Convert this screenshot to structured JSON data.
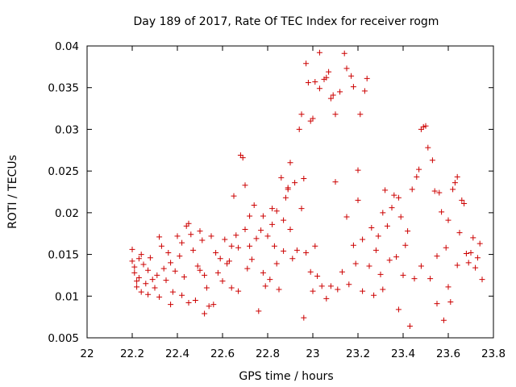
{
  "chart_data": {
    "type": "scatter",
    "title": "Day 189 of 2017, Rate Of TEC Index for receiver rogm",
    "xlabel": "GPS time / hours",
    "ylabel": "ROTI / TECUs",
    "xlim": [
      22,
      23.8
    ],
    "ylim": [
      0.005,
      0.04
    ],
    "xticks": [
      22,
      22.2,
      22.4,
      22.6,
      22.8,
      23,
      23.2,
      23.4,
      23.6,
      23.8
    ],
    "xtick_labels": [
      "22",
      "22.2",
      "22.4",
      "22.6",
      "22.8",
      "23",
      "23.2",
      "23.4",
      "23.6",
      "23.8"
    ],
    "yticks": [
      0.005,
      0.01,
      0.015,
      0.02,
      0.025,
      0.03,
      0.035,
      0.04
    ],
    "ytick_labels": [
      "0.005",
      "0.01",
      "0.015",
      "0.02",
      "0.025",
      "0.03",
      "0.035",
      "0.04"
    ],
    "grid": false,
    "marker": "+",
    "color": "#cc0000",
    "series": [
      {
        "name": "ROTI",
        "points": [
          [
            22.2,
            0.0156
          ],
          [
            22.2,
            0.0142
          ],
          [
            22.21,
            0.0135
          ],
          [
            22.21,
            0.0128
          ],
          [
            22.22,
            0.0118
          ],
          [
            22.22,
            0.0111
          ],
          [
            22.23,
            0.0145
          ],
          [
            22.23,
            0.0122
          ],
          [
            22.24,
            0.0105
          ],
          [
            22.24,
            0.015
          ],
          [
            22.25,
            0.0138
          ],
          [
            22.26,
            0.0115
          ],
          [
            22.27,
            0.0102
          ],
          [
            22.27,
            0.0131
          ],
          [
            22.28,
            0.0146
          ],
          [
            22.29,
            0.012
          ],
          [
            22.3,
            0.011
          ],
          [
            22.31,
            0.0125
          ],
          [
            22.32,
            0.0171
          ],
          [
            22.32,
            0.0099
          ],
          [
            22.33,
            0.016
          ],
          [
            22.34,
            0.0133
          ],
          [
            22.35,
            0.0119
          ],
          [
            22.36,
            0.0152
          ],
          [
            22.37,
            0.014
          ],
          [
            22.37,
            0.009
          ],
          [
            22.38,
            0.0105
          ],
          [
            22.39,
            0.013
          ],
          [
            22.4,
            0.0172
          ],
          [
            22.41,
            0.0148
          ],
          [
            22.42,
            0.0164
          ],
          [
            22.42,
            0.0101
          ],
          [
            22.43,
            0.0123
          ],
          [
            22.44,
            0.0184
          ],
          [
            22.45,
            0.0187
          ],
          [
            22.45,
            0.0092
          ],
          [
            22.46,
            0.0174
          ],
          [
            22.47,
            0.0155
          ],
          [
            22.48,
            0.0095
          ],
          [
            22.49,
            0.0136
          ],
          [
            22.5,
            0.0131
          ],
          [
            22.5,
            0.0178
          ],
          [
            22.51,
            0.0167
          ],
          [
            22.52,
            0.0125
          ],
          [
            22.52,
            0.0079
          ],
          [
            22.53,
            0.011
          ],
          [
            22.54,
            0.0088
          ],
          [
            22.55,
            0.0172
          ],
          [
            22.56,
            0.009
          ],
          [
            22.57,
            0.0152
          ],
          [
            22.58,
            0.0128
          ],
          [
            22.59,
            0.0145
          ],
          [
            22.6,
            0.0118
          ],
          [
            22.61,
            0.0168
          ],
          [
            22.62,
            0.0139
          ],
          [
            22.63,
            0.0142
          ],
          [
            22.64,
            0.016
          ],
          [
            22.64,
            0.011
          ],
          [
            22.65,
            0.022
          ],
          [
            22.66,
            0.0173
          ],
          [
            22.67,
            0.0158
          ],
          [
            22.67,
            0.0106
          ],
          [
            22.68,
            0.0269
          ],
          [
            22.69,
            0.0266
          ],
          [
            22.7,
            0.0233
          ],
          [
            22.7,
            0.018
          ],
          [
            22.71,
            0.0133
          ],
          [
            22.72,
            0.0196
          ],
          [
            22.72,
            0.016
          ],
          [
            22.73,
            0.0144
          ],
          [
            22.74,
            0.0209
          ],
          [
            22.75,
            0.0169
          ],
          [
            22.76,
            0.0082
          ],
          [
            22.77,
            0.0179
          ],
          [
            22.78,
            0.0196
          ],
          [
            22.78,
            0.0128
          ],
          [
            22.79,
            0.0112
          ],
          [
            22.8,
            0.0172
          ],
          [
            22.81,
            0.012
          ],
          [
            22.82,
            0.0186
          ],
          [
            22.82,
            0.0205
          ],
          [
            22.83,
            0.016
          ],
          [
            22.84,
            0.0202
          ],
          [
            22.84,
            0.0139
          ],
          [
            22.85,
            0.0108
          ],
          [
            22.86,
            0.0242
          ],
          [
            22.87,
            0.0191
          ],
          [
            22.87,
            0.0154
          ],
          [
            22.88,
            0.0218
          ],
          [
            22.89,
            0.0228
          ],
          [
            22.89,
            0.023
          ],
          [
            22.9,
            0.026
          ],
          [
            22.9,
            0.018
          ],
          [
            22.91,
            0.0145
          ],
          [
            22.92,
            0.0236
          ],
          [
            22.93,
            0.0155
          ],
          [
            22.94,
            0.03
          ],
          [
            22.95,
            0.0318
          ],
          [
            22.95,
            0.0205
          ],
          [
            22.96,
            0.0241
          ],
          [
            22.96,
            0.0074
          ],
          [
            22.97,
            0.0379
          ],
          [
            22.97,
            0.0152
          ],
          [
            22.98,
            0.0356
          ],
          [
            22.99,
            0.031
          ],
          [
            22.99,
            0.0129
          ],
          [
            23.0,
            0.0313
          ],
          [
            23.0,
            0.0106
          ],
          [
            23.01,
            0.0357
          ],
          [
            23.01,
            0.016
          ],
          [
            23.02,
            0.0124
          ],
          [
            23.03,
            0.0392
          ],
          [
            23.03,
            0.0349
          ],
          [
            23.04,
            0.0112
          ],
          [
            23.05,
            0.036
          ],
          [
            23.06,
            0.0362
          ],
          [
            23.06,
            0.0097
          ],
          [
            23.07,
            0.0369
          ],
          [
            23.08,
            0.0337
          ],
          [
            23.08,
            0.0112
          ],
          [
            23.09,
            0.0341
          ],
          [
            23.1,
            0.0318
          ],
          [
            23.1,
            0.0237
          ],
          [
            23.11,
            0.0108
          ],
          [
            23.12,
            0.0345
          ],
          [
            23.13,
            0.0129
          ],
          [
            23.14,
            0.0391
          ],
          [
            23.15,
            0.0373
          ],
          [
            23.15,
            0.0195
          ],
          [
            23.16,
            0.0114
          ],
          [
            23.17,
            0.0364
          ],
          [
            23.18,
            0.0351
          ],
          [
            23.18,
            0.0161
          ],
          [
            23.19,
            0.0139
          ],
          [
            23.2,
            0.0215
          ],
          [
            23.2,
            0.0251
          ],
          [
            23.21,
            0.0318
          ],
          [
            23.22,
            0.0168
          ],
          [
            23.22,
            0.0106
          ],
          [
            23.23,
            0.0346
          ],
          [
            23.24,
            0.0361
          ],
          [
            23.25,
            0.0136
          ],
          [
            23.26,
            0.0182
          ],
          [
            23.27,
            0.0101
          ],
          [
            23.28,
            0.0155
          ],
          [
            23.29,
            0.0172
          ],
          [
            23.3,
            0.0126
          ],
          [
            23.31,
            0.02
          ],
          [
            23.31,
            0.0108
          ],
          [
            23.32,
            0.0227
          ],
          [
            23.33,
            0.0184
          ],
          [
            23.34,
            0.0143
          ],
          [
            23.35,
            0.0206
          ],
          [
            23.36,
            0.0221
          ],
          [
            23.37,
            0.0147
          ],
          [
            23.38,
            0.0218
          ],
          [
            23.38,
            0.0084
          ],
          [
            23.39,
            0.0195
          ],
          [
            23.4,
            0.0125
          ],
          [
            23.41,
            0.0161
          ],
          [
            23.42,
            0.0178
          ],
          [
            23.43,
            0.0064
          ],
          [
            23.44,
            0.0228
          ],
          [
            23.45,
            0.0121
          ],
          [
            23.46,
            0.0243
          ],
          [
            23.47,
            0.0252
          ],
          [
            23.48,
            0.0136
          ],
          [
            23.48,
            0.03
          ],
          [
            23.49,
            0.0303
          ],
          [
            23.5,
            0.0304
          ],
          [
            23.51,
            0.0278
          ],
          [
            23.52,
            0.0121
          ],
          [
            23.53,
            0.0263
          ],
          [
            23.54,
            0.0226
          ],
          [
            23.55,
            0.0148
          ],
          [
            23.55,
            0.0091
          ],
          [
            23.56,
            0.0224
          ],
          [
            23.57,
            0.0201
          ],
          [
            23.58,
            0.0071
          ],
          [
            23.59,
            0.0158
          ],
          [
            23.6,
            0.0191
          ],
          [
            23.6,
            0.0111
          ],
          [
            23.61,
            0.0093
          ],
          [
            23.62,
            0.0228
          ],
          [
            23.63,
            0.0236
          ],
          [
            23.64,
            0.0243
          ],
          [
            23.64,
            0.0137
          ],
          [
            23.65,
            0.0176
          ],
          [
            23.66,
            0.0215
          ],
          [
            23.67,
            0.0211
          ],
          [
            23.68,
            0.0151
          ],
          [
            23.69,
            0.014
          ],
          [
            23.7,
            0.0152
          ],
          [
            23.71,
            0.017
          ],
          [
            23.72,
            0.0134
          ],
          [
            23.73,
            0.0146
          ],
          [
            23.74,
            0.0163
          ],
          [
            23.75,
            0.012
          ]
        ]
      }
    ]
  }
}
